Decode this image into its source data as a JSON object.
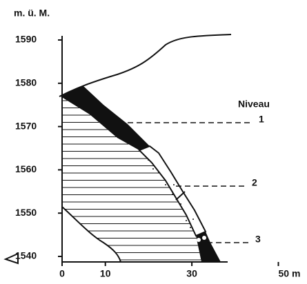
{
  "y_axis": {
    "unit": "m. ü. M.",
    "ticks": [
      1590,
      1580,
      1570,
      1560,
      1550,
      1540
    ]
  },
  "x_axis": {
    "ticks": [
      0,
      10,
      30,
      {
        "value": 50,
        "label": "50 m"
      }
    ]
  },
  "legend_title": "Niveau",
  "levels": [
    "1",
    "2",
    "3"
  ]
}
